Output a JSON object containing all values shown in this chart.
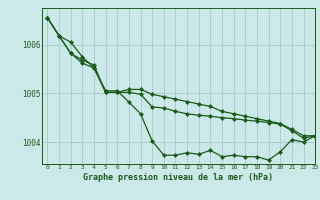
{
  "title": "Graphe pression niveau de la mer (hPa)",
  "background_color": "#cce8e8",
  "grid_color": "#aacece",
  "line_color": "#1a5c1a",
  "xlim": [
    -0.5,
    23
  ],
  "ylim": [
    1003.55,
    1006.75
  ],
  "xtick_labels": [
    "0",
    "1",
    "2",
    "3",
    "4",
    "5",
    "6",
    "7",
    "8",
    "9",
    "10",
    "11",
    "12",
    "13",
    "14",
    "15",
    "16",
    "17",
    "18",
    "19",
    "20",
    "21",
    "22",
    "23"
  ],
  "ytick_values": [
    1004,
    1005,
    1006
  ],
  "series": [
    [
      1006.55,
      1006.18,
      1006.05,
      1005.75,
      1005.52,
      1005.05,
      1005.05,
      1004.82,
      1004.58,
      1004.02,
      1003.73,
      1003.73,
      1003.78,
      1003.75,
      1003.83,
      1003.7,
      1003.73,
      1003.7,
      1003.7,
      1003.63,
      1003.8,
      1004.05,
      1004.0,
      1004.13
    ],
    [
      1006.55,
      1006.18,
      1005.82,
      1005.62,
      1005.52,
      1005.02,
      1005.02,
      1005.02,
      1004.98,
      1004.72,
      1004.7,
      1004.63,
      1004.58,
      1004.55,
      1004.53,
      1004.5,
      1004.48,
      1004.45,
      1004.43,
      1004.4,
      1004.37,
      1004.23,
      1004.08,
      1004.13
    ],
    [
      1006.55,
      1006.18,
      1005.82,
      1005.68,
      1005.58,
      1005.02,
      1005.02,
      1005.08,
      1005.08,
      1004.98,
      1004.93,
      1004.88,
      1004.83,
      1004.78,
      1004.73,
      1004.63,
      1004.58,
      1004.53,
      1004.48,
      1004.43,
      1004.38,
      1004.26,
      1004.13,
      1004.13
    ]
  ]
}
